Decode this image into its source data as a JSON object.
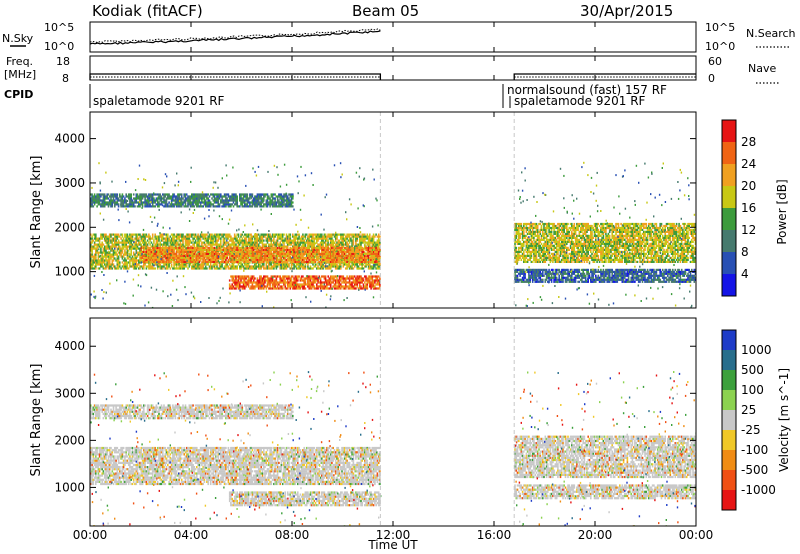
{
  "header": {
    "station": "Kodiak (fitACF)",
    "beam": "Beam 05",
    "date": "30/Apr/2015"
  },
  "noise_panel": {
    "left_label": "N.Sky",
    "right_label": "N.Search",
    "y_ticks_left": [
      "10^5",
      "10^0"
    ],
    "y_ticks_right": [
      "10^5",
      "10^0"
    ]
  },
  "freq_panel": {
    "left_label_1": "Freq.",
    "left_label_2": "[MHz]",
    "right_label": "Nave",
    "y_ticks_left": [
      "18",
      "8"
    ],
    "y_ticks_right": [
      "60",
      "0"
    ]
  },
  "cpid_panel": {
    "label": "CPID",
    "entries": [
      {
        "text": "spaletamode 9201 RF",
        "start_h": 0.05
      },
      {
        "text": "normalsound (fast) 157 RF",
        "start_h": 16.4
      },
      {
        "text": "spaletamode 9201 RF",
        "start_h": 16.85
      }
    ]
  },
  "chart_data": [
    {
      "type": "heatmap",
      "title": "Power",
      "ylabel": "Slant Range [km]",
      "xlabel": "Time UT",
      "xlim_hours": [
        0,
        24
      ],
      "ylim_km": [
        180,
        4600
      ],
      "y_ticks": [
        1000,
        2000,
        3000,
        4000
      ],
      "colorbar": {
        "label": "Power [dB]",
        "ticks": [
          4,
          8,
          12,
          16,
          20,
          24,
          28
        ],
        "range": [
          0,
          32
        ],
        "colors": [
          "#1414e6",
          "#2850b4",
          "#467a6e",
          "#3c9b3c",
          "#c8c814",
          "#f0a020",
          "#f06414",
          "#e61414"
        ]
      },
      "bands": [
        {
          "t0": 0,
          "t1": 11.5,
          "r0": 1050,
          "r1": 1850,
          "level": 18
        },
        {
          "t0": 2,
          "t1": 11.5,
          "r0": 1200,
          "r1": 1550,
          "level": 24
        },
        {
          "t0": 5.5,
          "t1": 11.5,
          "r0": 600,
          "r1": 900,
          "level": 26
        },
        {
          "t0": 0,
          "t1": 8,
          "r0": 2450,
          "r1": 2750,
          "level": 10
        },
        {
          "t0": 16.8,
          "t1": 24,
          "r0": 1200,
          "r1": 2100,
          "level": 18
        },
        {
          "t0": 16.8,
          "t1": 24,
          "r0": 750,
          "r1": 1050,
          "level": 8
        }
      ]
    },
    {
      "type": "heatmap",
      "title": "Velocity",
      "ylabel": "Slant Range [km]",
      "xlabel": "Time UT",
      "xlim_hours": [
        0,
        24
      ],
      "ylim_km": [
        180,
        4600
      ],
      "y_ticks": [
        1000,
        2000,
        3000,
        4000
      ],
      "colorbar": {
        "label": "Velocity [m s^-1]",
        "ticks": [
          "1000",
          "500",
          "100",
          "25",
          "-25",
          "-100",
          "-500",
          "-1000"
        ],
        "colors": [
          "#1e3cc8",
          "#286e8c",
          "#3ca03c",
          "#8cd250",
          "#c8c8c8",
          "#f0c828",
          "#f08c14",
          "#f05014",
          "#e61414"
        ]
      },
      "bands": [
        {
          "t0": 0,
          "t1": 11.5,
          "r0": 1050,
          "r1": 1850,
          "level": "-25"
        },
        {
          "t0": 5.5,
          "t1": 11.5,
          "r0": 600,
          "r1": 900,
          "level": "-25"
        },
        {
          "t0": 0,
          "t1": 8,
          "r0": 2450,
          "r1": 2750,
          "level": "-25"
        },
        {
          "t0": 16.8,
          "t1": 24,
          "r0": 1200,
          "r1": 2100,
          "level": "-25"
        },
        {
          "t0": 16.8,
          "t1": 24,
          "r0": 750,
          "r1": 1050,
          "level": "-25"
        }
      ]
    }
  ],
  "x_axis": {
    "ticks": [
      "00:00",
      "04:00",
      "08:00",
      "12:00",
      "16:00",
      "20:00",
      "00:00"
    ],
    "label": "Time UT",
    "data_gap": [
      11.5,
      16.8
    ]
  },
  "colors": {
    "gap_marker": "#c8c8c8"
  }
}
